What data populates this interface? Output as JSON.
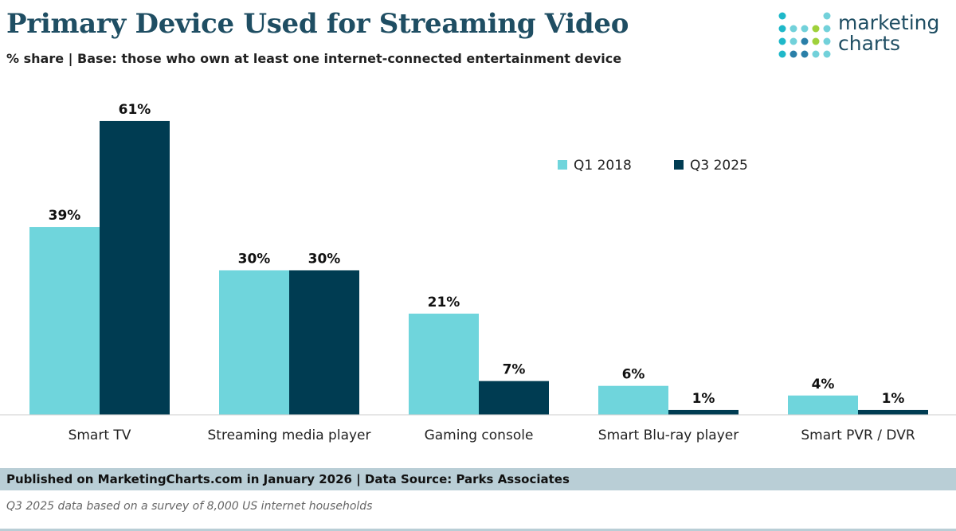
{
  "header": {
    "title": "Primary Device Used for Streaming Video",
    "subtitle": "% share | Base: those who own at least one internet-connected entertainment device"
  },
  "logo": {
    "line1": "marketing",
    "line2": "charts",
    "icon": "dot-grid-logo-icon",
    "dot_colors": [
      "#1fb8c9",
      "#72d1da",
      "#2a7fa8",
      "#9fd13b"
    ]
  },
  "chart_data": {
    "type": "bar",
    "categories": [
      "Smart TV",
      "Streaming media player",
      "Gaming console",
      "Smart Blu-ray player",
      "Smart PVR / DVR"
    ],
    "series": [
      {
        "name": "Q1 2018",
        "values": [
          39,
          30,
          21,
          6,
          4
        ],
        "color": "#6fd5dc"
      },
      {
        "name": "Q3 2025",
        "values": [
          61,
          30,
          7,
          1,
          1
        ],
        "color": "#003c52"
      }
    ],
    "value_suffix": "%",
    "ylim": [
      0,
      65
    ],
    "grid": false,
    "legend": "top-right"
  },
  "footer": {
    "source": "Published on MarketingCharts.com in January 2026 | Data Source: Parks Associates",
    "note": "Q3 2025 data based on a survey of 8,000 US internet households"
  }
}
